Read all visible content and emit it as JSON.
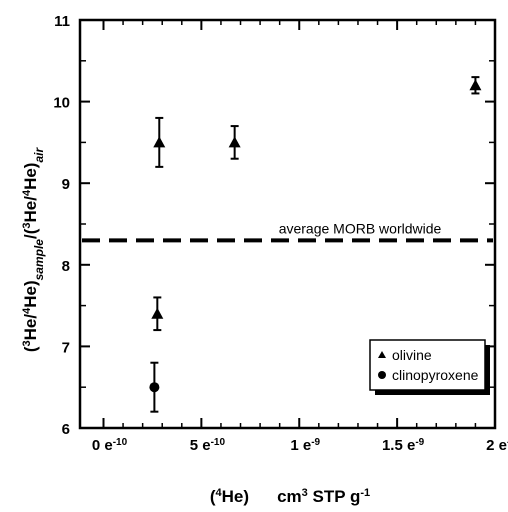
{
  "chart_data": {
    "type": "scatter",
    "title": "",
    "xlabel": {
      "prefix": "(",
      "sup1": "4",
      "mid": "He)",
      "unit": "cm",
      "sup2": "3",
      "tail": " STP g",
      "sup3": "-1"
    },
    "ylabel": {
      "p1": "(",
      "s1": "3",
      "p2": "He/",
      "s2": "4",
      "p3": "He)",
      "sub1": "sample",
      "p4": "/(",
      "s3": "3",
      "p5": "He/",
      "s4": "4",
      "p6": "He)",
      "sub2": "air"
    },
    "xlim": [
      -1.2e-10,
      2e-09
    ],
    "ylim": [
      6,
      11
    ],
    "xticks": [
      {
        "value": 0,
        "label": "0 e",
        "exp": "-10"
      },
      {
        "value": 5e-10,
        "label": "5 e",
        "exp": "-10"
      },
      {
        "value": 1e-09,
        "label": "1 e",
        "exp": "-9"
      },
      {
        "value": 1.5e-09,
        "label": "1.5 e",
        "exp": "-9"
      },
      {
        "value": 2e-09,
        "label": "2 e",
        "exp": "-9"
      }
    ],
    "yticks": [
      {
        "value": 6,
        "label": "6"
      },
      {
        "value": 7,
        "label": "7"
      },
      {
        "value": 8,
        "label": "8"
      },
      {
        "value": 9,
        "label": "9"
      },
      {
        "value": 10,
        "label": "10"
      },
      {
        "value": 11,
        "label": "11"
      }
    ],
    "series": [
      {
        "name": "olivine",
        "marker": "triangle",
        "points": [
          {
            "x": 2.85e-10,
            "y": 9.5,
            "err": 0.3
          },
          {
            "x": 6.7e-10,
            "y": 9.5,
            "err": 0.2
          },
          {
            "x": 1.9e-09,
            "y": 10.2,
            "err": 0.1
          },
          {
            "x": 2.75e-10,
            "y": 7.4,
            "err": 0.2
          }
        ]
      },
      {
        "name": "clinopyroxene",
        "marker": "circle",
        "points": [
          {
            "x": 2.6e-10,
            "y": 6.5,
            "err": 0.3
          }
        ]
      }
    ],
    "reference_line": {
      "y": 8.3,
      "label": "average MORB worldwide",
      "style": "dashed"
    },
    "legend": {
      "position": "bottom-right",
      "items": [
        "olivine",
        "clinopyroxene"
      ]
    },
    "grid": false
  }
}
